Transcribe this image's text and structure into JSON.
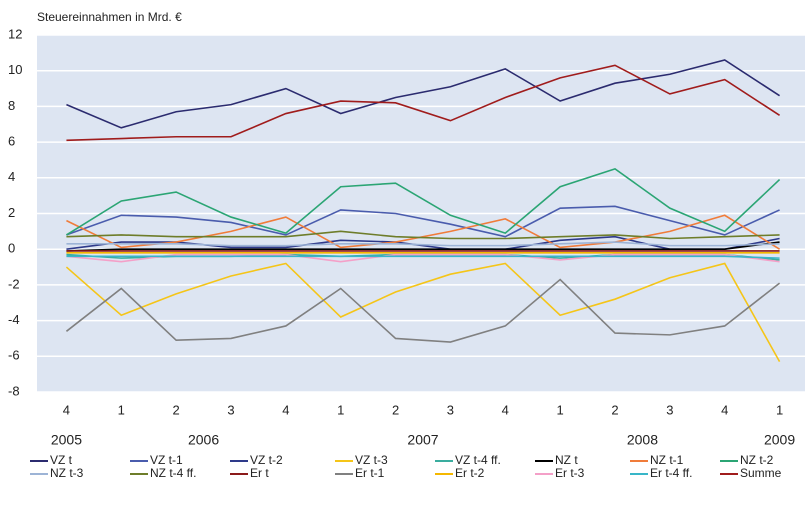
{
  "chart_data": {
    "type": "line",
    "y_label": "Steuereinnahmen in Mrd. €",
    "categories": [
      "4",
      "1",
      "2",
      "3",
      "4",
      "1",
      "2",
      "3",
      "4",
      "1",
      "2",
      "3",
      "4",
      "1"
    ],
    "years": [
      "2005",
      "2006",
      "2007",
      "2008",
      "2009"
    ],
    "ylim": [
      -8,
      12
    ],
    "yticks": [
      -8,
      -6,
      -4,
      -2,
      0,
      2,
      4,
      6,
      8,
      10,
      12
    ],
    "grid": true,
    "series": [
      {
        "name": "VZ t",
        "color": "#2b2b6f",
        "values": [
          8.1,
          6.8,
          7.7,
          8.1,
          9.0,
          7.6,
          8.5,
          9.1,
          10.1,
          8.3,
          9.3,
          9.8,
          10.6,
          8.6
        ]
      },
      {
        "name": "VZ t-1",
        "color": "#4a5cad",
        "values": [
          0.8,
          1.9,
          1.8,
          1.5,
          0.8,
          2.2,
          2.0,
          1.4,
          0.7,
          2.3,
          2.4,
          1.6,
          0.8,
          2.2
        ]
      },
      {
        "name": "VZ t-2",
        "color": "#2e3a8a",
        "values": [
          0,
          0.4,
          0.4,
          0.1,
          0.1,
          0.5,
          0.4,
          0,
          0,
          0.5,
          0.7,
          0,
          0,
          0.6
        ]
      },
      {
        "name": "VZ t-3",
        "color": "#f5c518",
        "values": [
          -1,
          -3.7,
          -2.5,
          -1.5,
          -0.8,
          -3.8,
          -2.4,
          -1.4,
          -0.8,
          -3.7,
          -2.8,
          -1.6,
          -0.8,
          -6.3
        ]
      },
      {
        "name": "VZ t-4 ff.",
        "color": "#3aad9f",
        "values": [
          -0.3,
          -0.5,
          -0.4,
          -0.4,
          -0.3,
          -0.4,
          -0.3,
          -0.3,
          -0.3,
          -0.5,
          -0.3,
          -0.3,
          -0.3,
          -0.6
        ]
      },
      {
        "name": "NZ t",
        "color": "#000000",
        "values": [
          -0.1,
          0,
          0,
          0,
          0,
          0,
          0,
          0,
          0,
          0,
          0,
          0,
          0,
          0.4
        ]
      },
      {
        "name": "NZ t-1",
        "color": "#f07c3a",
        "values": [
          1.6,
          0.1,
          0.4,
          1.0,
          1.8,
          0.1,
          0.4,
          1.0,
          1.7,
          0.1,
          0.4,
          1.0,
          1.9,
          0
        ]
      },
      {
        "name": "NZ t-2",
        "color": "#2ba574",
        "values": [
          0.8,
          2.7,
          3.2,
          1.8,
          0.9,
          3.5,
          3.7,
          1.9,
          0.9,
          3.5,
          4.5,
          2.3,
          1.0,
          3.9
        ]
      },
      {
        "name": "NZ t-3",
        "color": "#9db4d6",
        "values": [
          0.3,
          0.3,
          0.3,
          0.2,
          0.2,
          0.3,
          0.3,
          0.2,
          0.2,
          0.3,
          0.4,
          0.2,
          0.2,
          0.3
        ]
      },
      {
        "name": "NZ t-4 ff.",
        "color": "#6e7d2a",
        "values": [
          0.7,
          0.8,
          0.7,
          0.7,
          0.7,
          1.0,
          0.7,
          0.6,
          0.6,
          0.7,
          0.8,
          0.6,
          0.7,
          0.8
        ]
      },
      {
        "name": "Er t",
        "color": "#8b1a1a",
        "values": [
          -0.1,
          -0.1,
          -0.1,
          -0.1,
          -0.1,
          -0.1,
          -0.1,
          -0.1,
          -0.1,
          -0.1,
          -0.1,
          -0.1,
          -0.1,
          -0.1
        ]
      },
      {
        "name": "Er t-1",
        "color": "#808080",
        "values": [
          -4.6,
          -2.2,
          -5.1,
          -5.0,
          -4.3,
          -2.2,
          -5.0,
          -5.2,
          -4.3,
          -1.7,
          -4.7,
          -4.8,
          -4.3,
          -1.9
        ]
      },
      {
        "name": "Er t-2",
        "color": "#f5b800",
        "values": [
          -0.2,
          -0.2,
          -0.2,
          -0.2,
          -0.2,
          -0.2,
          -0.2,
          -0.2,
          -0.2,
          -0.2,
          -0.2,
          -0.2,
          -0.2,
          -0.2
        ]
      },
      {
        "name": "Er t-3",
        "color": "#f4a0c8",
        "values": [
          -0.4,
          -0.7,
          -0.3,
          -0.3,
          -0.3,
          -0.7,
          -0.3,
          -0.3,
          -0.3,
          -0.6,
          -0.3,
          -0.3,
          -0.3,
          -0.7
        ]
      },
      {
        "name": "Er t-4 ff.",
        "color": "#38b6c8",
        "values": [
          -0.4,
          -0.4,
          -0.4,
          -0.4,
          -0.4,
          -0.4,
          -0.4,
          -0.4,
          -0.4,
          -0.4,
          -0.4,
          -0.4,
          -0.4,
          -0.5
        ]
      },
      {
        "name": "Summe",
        "color": "#a01c1c",
        "values": [
          6.1,
          6.2,
          6.3,
          6.3,
          7.6,
          8.3,
          8.2,
          7.2,
          8.5,
          9.6,
          10.3,
          8.7,
          9.5,
          7.5
        ]
      }
    ]
  }
}
